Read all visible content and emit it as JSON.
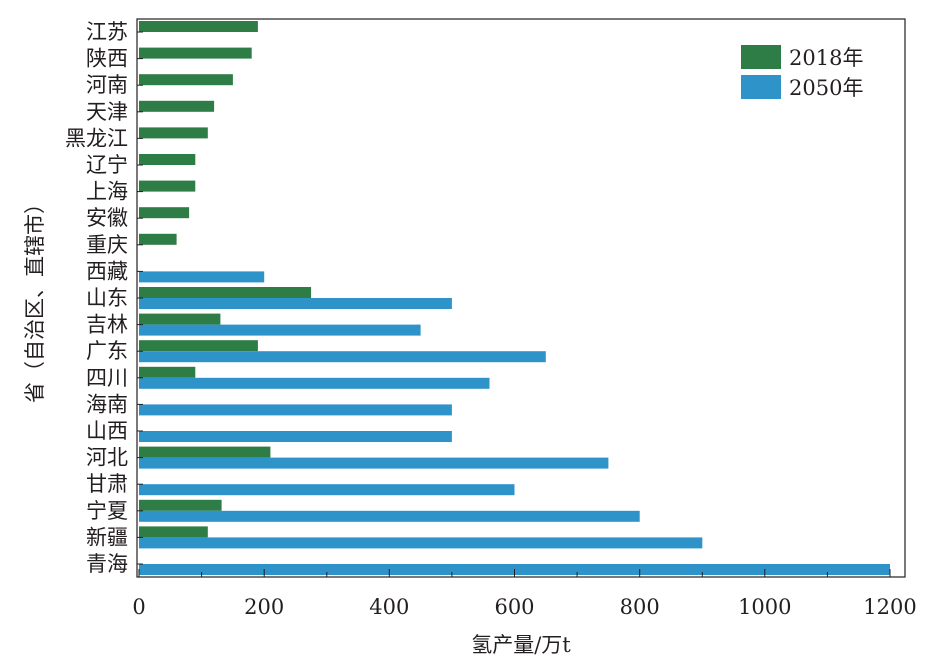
{
  "chart_data": {
    "type": "bar",
    "orientation": "horizontal",
    "categories": [
      "江苏",
      "陕西",
      "河南",
      "天津",
      "黑龙江",
      "辽宁",
      "上海",
      "安徽",
      "重庆",
      "西藏",
      "山东",
      "吉林",
      "广东",
      "四川",
      "海南",
      "山西",
      "河北",
      "甘肃",
      "宁夏",
      "新疆",
      "青海"
    ],
    "series": [
      {
        "name": "2018年",
        "color": "#2e7d46",
        "values": [
          190,
          180,
          150,
          120,
          110,
          90,
          90,
          80,
          60,
          null,
          275,
          130,
          190,
          90,
          null,
          null,
          210,
          null,
          132,
          110,
          null
        ]
      },
      {
        "name": "2050年",
        "color": "#2e93c8",
        "values": [
          null,
          null,
          null,
          null,
          null,
          null,
          null,
          null,
          null,
          200,
          500,
          450,
          650,
          560,
          500,
          500,
          750,
          600,
          800,
          900,
          1200
        ]
      }
    ],
    "xlabel": "氢产量/万t",
    "ylabel": "省（自治区、直辖市）",
    "xlim": [
      0,
      1220
    ],
    "xticks": [
      0,
      200,
      400,
      600,
      800,
      1000,
      1200
    ],
    "legend_position": "top-right",
    "grid": false
  }
}
